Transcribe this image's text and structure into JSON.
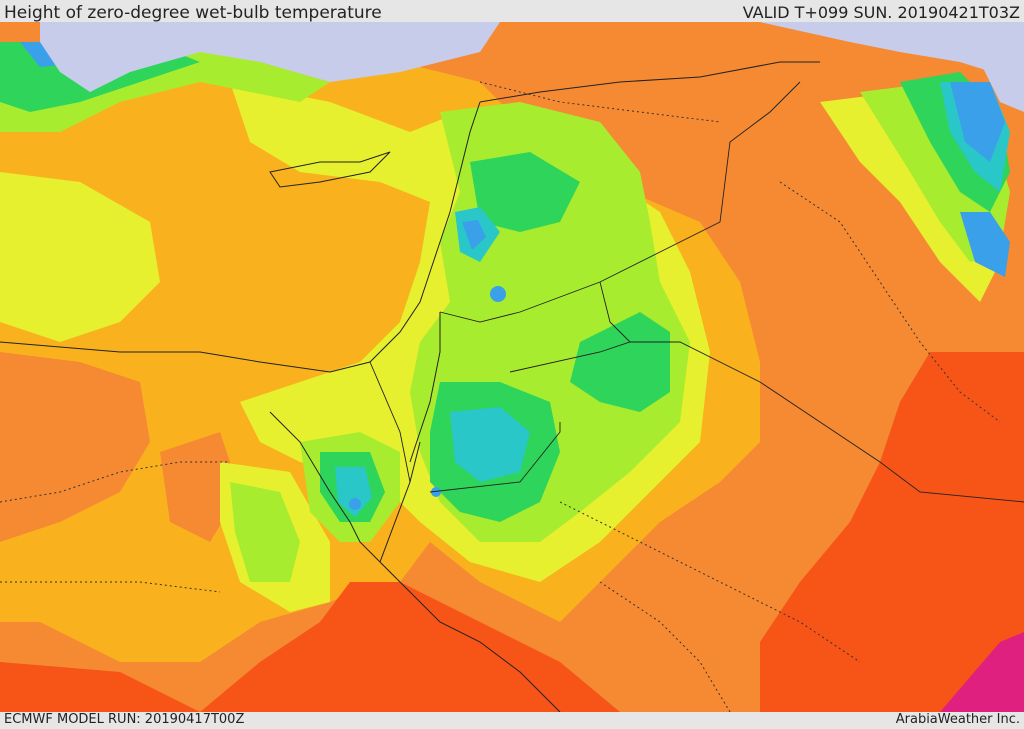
{
  "header": {
    "title": "Height of zero-degree wet-bulb temperature",
    "valid": "VALID T+099 SUN. 20190421T03Z"
  },
  "footer": {
    "model_run": "ECMWF MODEL RUN: 20190417T00Z",
    "credit": "ArabiaWeather Inc."
  },
  "palette": {
    "sea_ice": "#c8cceb",
    "blue": "#3aa0ea",
    "cyan": "#2ac7c8",
    "green_dark": "#18c24a",
    "green": "#2fd45a",
    "green_light": "#7de04a",
    "lime": "#a8ec2f",
    "yellow": "#e6f02f",
    "orange_light": "#f9b21e",
    "orange": "#f58a32",
    "red_orange": "#f75417",
    "magenta": "#e0207f"
  }
}
